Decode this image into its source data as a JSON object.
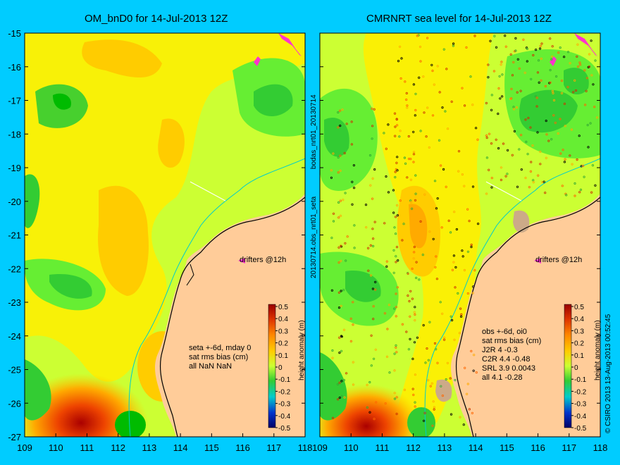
{
  "panels": [
    {
      "title": "OM_bnD0 for 14-Jul-2013 12Z",
      "stats": [
        "seta +-6d, mday 0",
        "sat rms bias (cm)",
        "all NaN NaN"
      ],
      "drifters_label": "drifters @12h"
    },
    {
      "title": "CMRNRT sea level  for 14-Jul-2013 12Z",
      "stats": [
        "obs +-6d, oi0",
        "sat rms bias (cm)",
        "J2R  4 -0.3",
        "C2R  4.4 -0.48",
        "SRL  3.9 0.0043",
        "all  4.1 -0.28"
      ],
      "drifters_label": "drifters @12h"
    }
  ],
  "side_label_1": "20130714.obs_nrt01_seta",
  "side_label_2": "bodas_nrt01_20130714",
  "credit": "© CSIRO 2013   13-Aug-2013 00:52:45",
  "colorbar": {
    "label": "height anomaly (m)",
    "ticks": [
      "0.5",
      "0.4",
      "0.3",
      "0.2",
      "0.1",
      "0",
      "-0.1",
      "-0.2",
      "-0.3",
      "-0.4",
      "-0.5"
    ]
  },
  "chart_data": {
    "type": "heatmap",
    "x_ticks": [
      "109",
      "110",
      "111",
      "112",
      "113",
      "114",
      "115",
      "116",
      "117",
      "118"
    ],
    "y_ticks": [
      "-15",
      "-16",
      "-17",
      "-18",
      "-19",
      "-20",
      "-21",
      "-22",
      "-23",
      "-24",
      "-25",
      "-26",
      "-27"
    ],
    "xlim": [
      109,
      118
    ],
    "ylim": [
      -27,
      -15
    ],
    "clim": [
      -0.5,
      0.5
    ],
    "colors": {
      "background": "#00ccff",
      "land": "#ffcc99",
      "field_base": "#ccff33",
      "positive_mid": "#ffcc00",
      "positive_high": "#cc2200",
      "negative_low": "#33cc33",
      "negative_mid": "#66ee33",
      "coastline_track": "#00cccc",
      "drifter": "#ff33cc"
    }
  }
}
